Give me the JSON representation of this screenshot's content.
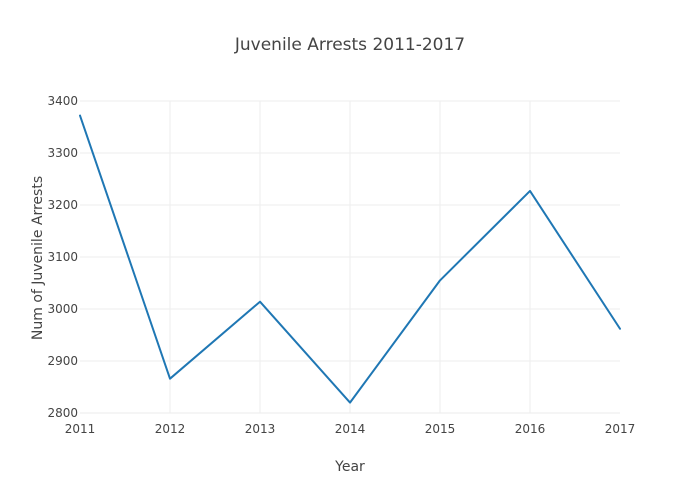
{
  "chart_data": {
    "type": "line",
    "title": "Juvenile Arrests 2011-2017",
    "xlabel": "Year",
    "ylabel": "Num of Juvenile Arrests",
    "x": [
      2011,
      2012,
      2013,
      2014,
      2015,
      2016,
      2017
    ],
    "series": [
      {
        "values": [
          3372,
          2866,
          3014,
          2820,
          3055,
          3227,
          2962
        ],
        "color": "#1f77b4"
      }
    ],
    "xlim": [
      2011,
      2017
    ],
    "ylim": [
      2800,
      3400
    ],
    "xticks": [
      "2011",
      "2012",
      "2013",
      "2014",
      "2015",
      "2016",
      "2017"
    ],
    "yticks": [
      "2800",
      "2900",
      "3000",
      "3100",
      "3200",
      "3300",
      "3400"
    ],
    "grid": true,
    "legend": false
  }
}
